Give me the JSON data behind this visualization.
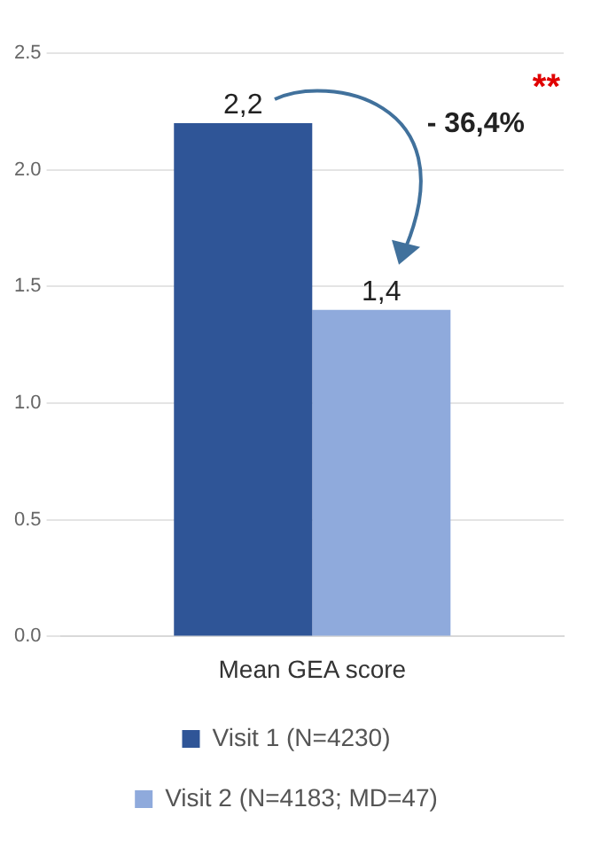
{
  "chart_data": {
    "type": "bar",
    "categories": [
      "Mean GEA score"
    ],
    "series": [
      {
        "name": "Visit 1 (N=4230)",
        "color": "#2f5597",
        "values": [
          2.2
        ],
        "value_labels": [
          "2,2"
        ]
      },
      {
        "name": "Visit 2 (N=4183; MD=47)",
        "color": "#8faadc",
        "values": [
          1.4
        ],
        "value_labels": [
          "1,4"
        ]
      }
    ],
    "ylim": [
      0,
      2.5
    ],
    "yticks": [
      {
        "value": 0,
        "label": "0.0"
      },
      {
        "value": 0.5,
        "label": "0.5"
      },
      {
        "value": 1,
        "label": "1.0"
      },
      {
        "value": 1.5,
        "label": "1.5"
      },
      {
        "value": 2,
        "label": "2.0"
      },
      {
        "value": 2.5,
        "label": "2.5"
      }
    ],
    "grid": "y",
    "legend": "bottom",
    "annotations": [
      "- 36,4%",
      "**"
    ]
  }
}
